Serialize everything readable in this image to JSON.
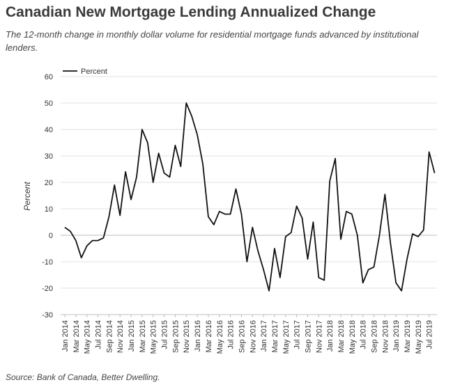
{
  "chart_data": {
    "type": "line",
    "title": "Canadian New Mortgage Lending Annualized Change",
    "subtitle": "The 12-month change in monthly dollar volume for residential mortgage funds advanced by institutional lenders.",
    "source": "Source: Bank of Canada, Better Dwelling.",
    "ylabel": "Percent",
    "xlabel": "",
    "ylim": [
      -30,
      60
    ],
    "yticks": [
      60,
      50,
      40,
      30,
      20,
      10,
      0,
      -10,
      -20,
      -30
    ],
    "grid": true,
    "legend_position": "top-left",
    "x_tick_labels": [
      "Jan 2014",
      "Mar 2014",
      "May 2014",
      "Jul 2014",
      "Sep 2014",
      "Nov 2014",
      "Jan 2015",
      "Mar 2015",
      "May 2015",
      "Jul 2015",
      "Sep 2015",
      "Nov 2015",
      "Jan 2016",
      "Mar 2016",
      "May 2016",
      "Jul 2016",
      "Sep 2016",
      "Nov 2016",
      "Jan 2017",
      "Mar 2017",
      "May 2017",
      "Jul 2017",
      "Sep 2017",
      "Nov 2017",
      "Jan 2018",
      "Mar 2018",
      "May 2018",
      "Jul 2018",
      "Sep 2018",
      "Nov 2018",
      "Jan 2019",
      "Mar 2019",
      "May 2019",
      "Jul 2019"
    ],
    "series": [
      {
        "name": "Percent",
        "color": "#111111",
        "x": [
          "Jan 2014",
          "Feb 2014",
          "Mar 2014",
          "Apr 2014",
          "May 2014",
          "Jun 2014",
          "Jul 2014",
          "Aug 2014",
          "Sep 2014",
          "Oct 2014",
          "Nov 2014",
          "Dec 2014",
          "Jan 2015",
          "Feb 2015",
          "Mar 2015",
          "Apr 2015",
          "May 2015",
          "Jun 2015",
          "Jul 2015",
          "Aug 2015",
          "Sep 2015",
          "Oct 2015",
          "Nov 2015",
          "Dec 2015",
          "Jan 2016",
          "Feb 2016",
          "Mar 2016",
          "Apr 2016",
          "May 2016",
          "Jun 2016",
          "Jul 2016",
          "Aug 2016",
          "Sep 2016",
          "Oct 2016",
          "Nov 2016",
          "Dec 2016",
          "Jan 2017",
          "Feb 2017",
          "Mar 2017",
          "Apr 2017",
          "May 2017",
          "Jun 2017",
          "Jul 2017",
          "Aug 2017",
          "Sep 2017",
          "Oct 2017",
          "Nov 2017",
          "Dec 2017",
          "Jan 2018",
          "Feb 2018",
          "Mar 2018",
          "Apr 2018",
          "May 2018",
          "Jun 2018",
          "Jul 2018",
          "Aug 2018",
          "Sep 2018",
          "Oct 2018",
          "Nov 2018",
          "Dec 2018",
          "Jan 2019",
          "Feb 2019",
          "Mar 2019",
          "Apr 2019",
          "May 2019",
          "Jun 2019",
          "Jul 2019",
          "Aug 2019"
        ],
        "values": [
          3,
          1.5,
          -2,
          -8.5,
          -4,
          -2,
          -2,
          -1,
          7,
          19,
          7.5,
          24,
          13.5,
          22,
          40,
          35,
          20,
          31,
          23.5,
          22,
          34,
          26,
          50,
          45,
          38,
          27,
          7,
          4,
          9,
          8,
          8,
          17.5,
          8,
          -10,
          3,
          -6,
          -13,
          -21,
          -5,
          -16,
          -0.5,
          1,
          11,
          6.5,
          -9,
          5,
          -16,
          -17,
          20.5,
          29,
          -1.5,
          9,
          8,
          0,
          -18,
          -13,
          -12,
          0,
          15.5,
          -3,
          -18,
          -21,
          -9,
          0.5,
          -0.5,
          2,
          31.5,
          23.5
        ]
      }
    ]
  }
}
